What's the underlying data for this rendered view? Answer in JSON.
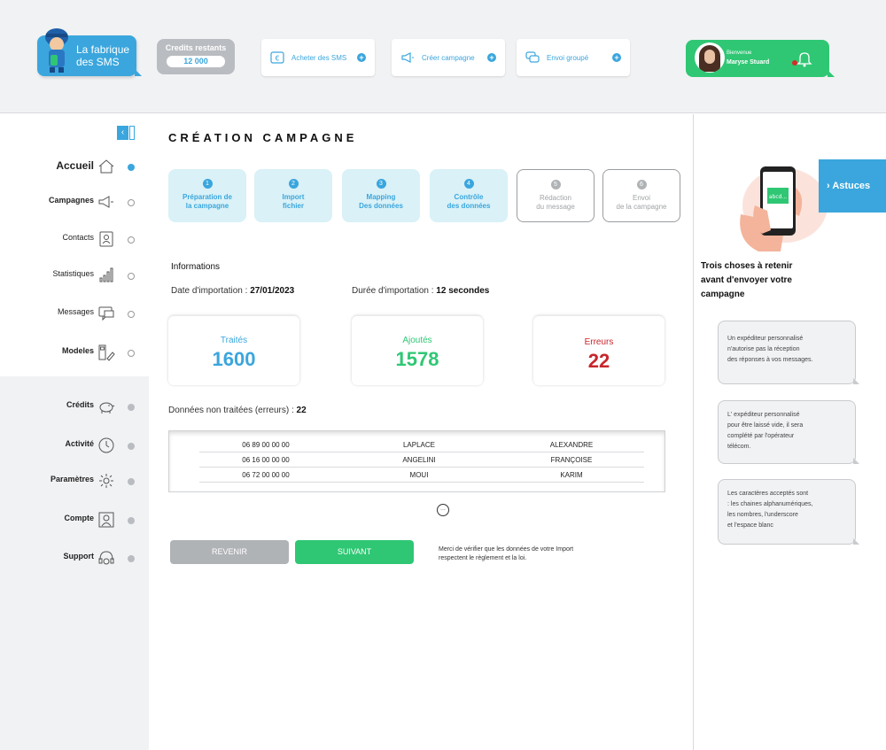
{
  "header": {
    "logo_text_line1": "La fabrique",
    "logo_text_line2": "des SMS",
    "credits_label": "Credits restants",
    "credits_value": "12 000",
    "buttons": [
      {
        "label": "Acheter des SMS",
        "icon": "euro-card-icon"
      },
      {
        "label": "Créer campagne",
        "icon": "megaphone-icon"
      },
      {
        "label": "Envoi groupé",
        "icon": "chat-bubbles-icon"
      }
    ],
    "welcome_label": "Bienvenue",
    "user_name": "Maryse Stuard"
  },
  "sidebar": {
    "items": [
      {
        "label": "Accueil",
        "icon": "home-icon"
      },
      {
        "label": "Campagnes",
        "icon": "megaphone-icon"
      },
      {
        "label": "Contacts",
        "icon": "contacts-icon"
      },
      {
        "label": "Statistiques",
        "icon": "bar-chart-icon"
      },
      {
        "label": "Messages",
        "icon": "message-icon"
      },
      {
        "label": "Modeles",
        "icon": "template-icon"
      },
      {
        "label": "Crédits",
        "icon": "piggy-bank-icon"
      },
      {
        "label": "Activité",
        "icon": "clock-icon"
      },
      {
        "label": "Paramètres",
        "icon": "gear-icon"
      },
      {
        "label": "Compte",
        "icon": "account-icon"
      },
      {
        "label": "Support",
        "icon": "headset-icon"
      }
    ]
  },
  "main": {
    "title": "CRÉATION CAMPAGNE",
    "steps": [
      {
        "num": "1",
        "line1": "Préparation de",
        "line2": "la campagne"
      },
      {
        "num": "2",
        "line1": "Import",
        "line2": "fichier"
      },
      {
        "num": "3",
        "line1": "Mapping",
        "line2": "Des données"
      },
      {
        "num": "4",
        "line1": "Contrôle",
        "line2": "des données"
      },
      {
        "num": "5",
        "line1": "Rédaction",
        "line2": "du message"
      },
      {
        "num": "6",
        "line1": "Envoi",
        "line2": "de la campagne"
      }
    ],
    "info_title": "Informations",
    "import_date_label": "Date d'importation :",
    "import_date_value": "27/01/2023",
    "import_duration_label": "Durée d'importation :",
    "import_duration_value": "12 secondes",
    "cards": [
      {
        "label": "Traités",
        "value": "1600",
        "color": "#3aa6dd"
      },
      {
        "label": "Ajoutés",
        "value": "1578",
        "color": "#2fc774"
      },
      {
        "label": "Erreurs",
        "value": "22",
        "color": "#c8262c"
      }
    ],
    "errors_label": "Données non traitées (erreurs) :",
    "errors_value": "22",
    "rows": [
      [
        "06 89 00 00 00",
        "LAPLACE",
        "ALEXANDRE"
      ],
      [
        "06 16 00 00 00",
        "ANGELINI",
        "FRANÇOISE"
      ],
      [
        "06 72 00 00 00",
        "MOUI",
        "KARIM"
      ]
    ],
    "back_label": "REVENIR",
    "next_label": "SUIVANT",
    "note_line1": "Merci de vérifier que les données de votre Import",
    "note_line2": "respectent le règlement et la loi."
  },
  "tips": {
    "tab_label": "Astuces",
    "phone_text": "abcd...",
    "title_line1": "Trois choses à retenir",
    "title_line2": "avant d'envoyer votre",
    "title_line3": "campagne",
    "items": [
      [
        "Un expéditeur personnalisé",
        "n'autorise pas la réception",
        "des réponses à vos messages."
      ],
      [
        "L' expéditeur personnalisé",
        "pour être laissé vide, il sera",
        "complété par l'opérateur",
        "télécom."
      ],
      [
        "Les caractères acceptés sont",
        ": les chaines alphanumériques,",
        "les nombres, l'underscore",
        "et l'espace blanc"
      ]
    ]
  },
  "colors": {
    "accent_blue": "#3aa6dd",
    "accent_green": "#2fc774",
    "error_red": "#c8262c",
    "step_active_bg": "#d9f1f7"
  }
}
